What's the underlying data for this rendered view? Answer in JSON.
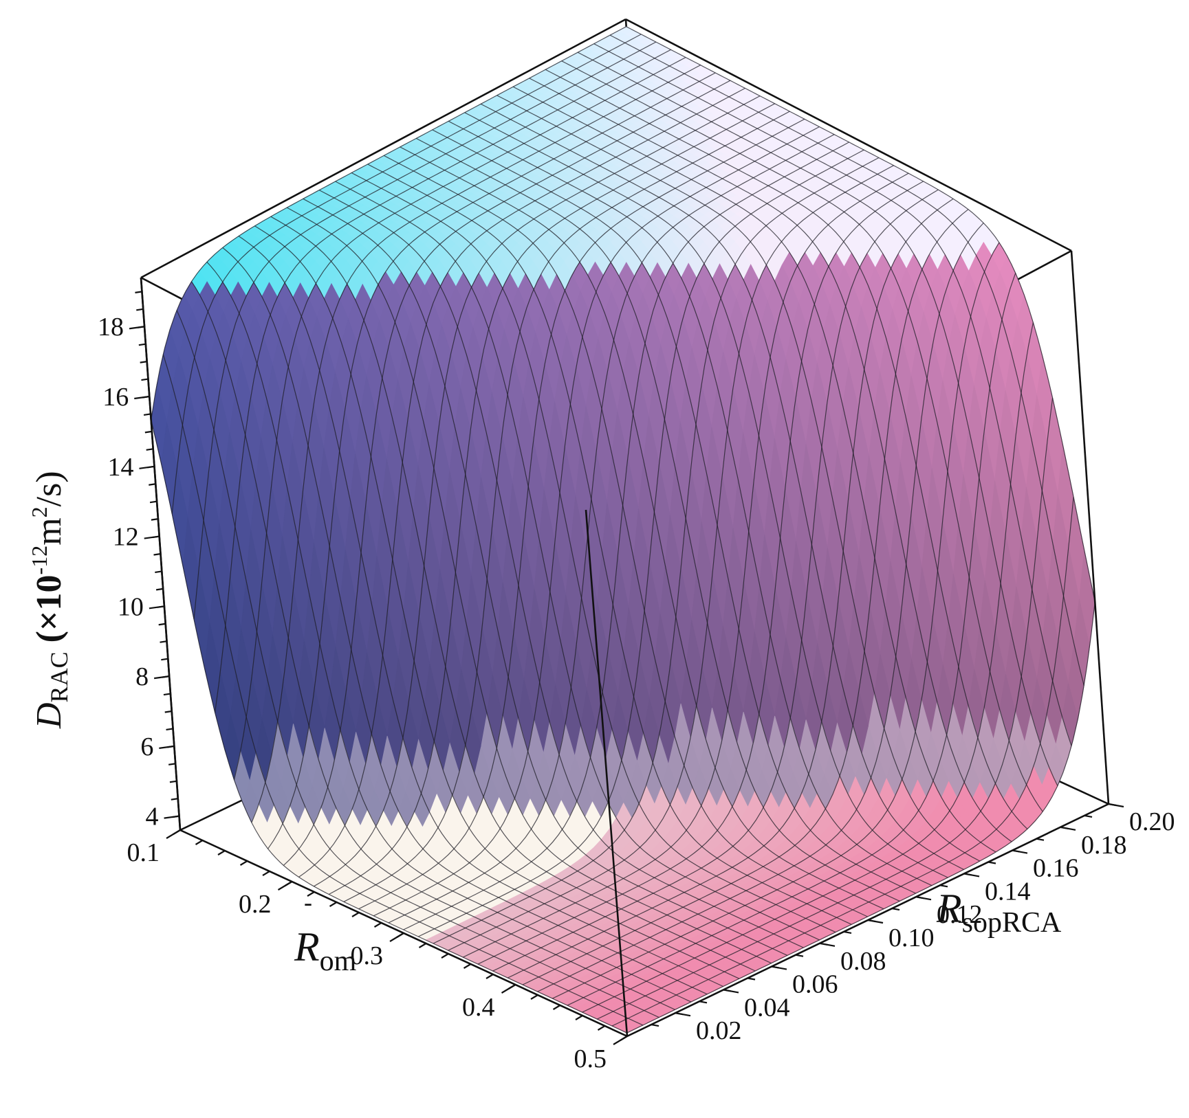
{
  "chart_data": {
    "type": "surface3d",
    "z_axis": {
      "label_main": "D",
      "label_sub": "RAC",
      "unit_prefix": " (×10",
      "unit_exp": "-12",
      "unit_mid": "m",
      "unit_exp2": "2",
      "unit_suffix": "/s)",
      "range": [
        3.6,
        19.4
      ],
      "ticks": [
        "4",
        "6",
        "8",
        "10",
        "12",
        "14",
        "16",
        "18"
      ]
    },
    "x_axis": {
      "label_main": "R",
      "label_sub": "om",
      "label_bar": "-",
      "range": [
        0.1,
        0.5
      ],
      "ticks": [
        "0.1",
        "0.2",
        "0.3",
        "0.4",
        "0.5"
      ]
    },
    "y_axis": {
      "label_main": "R",
      "label_sub": "sopRCA",
      "range": [
        0.0,
        0.2
      ],
      "ticks": [
        "0.02",
        "0.04",
        "0.06",
        "0.08",
        "0.10",
        "0.12",
        "0.14",
        "0.16",
        "0.18",
        "0.20"
      ]
    },
    "surface": {
      "description_values": "sigmoidal transition of D_RAC with R_om and R_sopRCA",
      "z_low": 3.7,
      "z_high": 19.2,
      "transition_x_at_y0": 0.12,
      "transition_x_at_y02": 0.49,
      "mesh_x_lines": 31,
      "mesh_y_lines": 31
    },
    "colors": {
      "top": "#4fe3f0",
      "upper_left": "#7aa2ff",
      "mid_dark": "#3b3f70",
      "pink": "#f2a0c0",
      "light": "#ffffff"
    }
  }
}
